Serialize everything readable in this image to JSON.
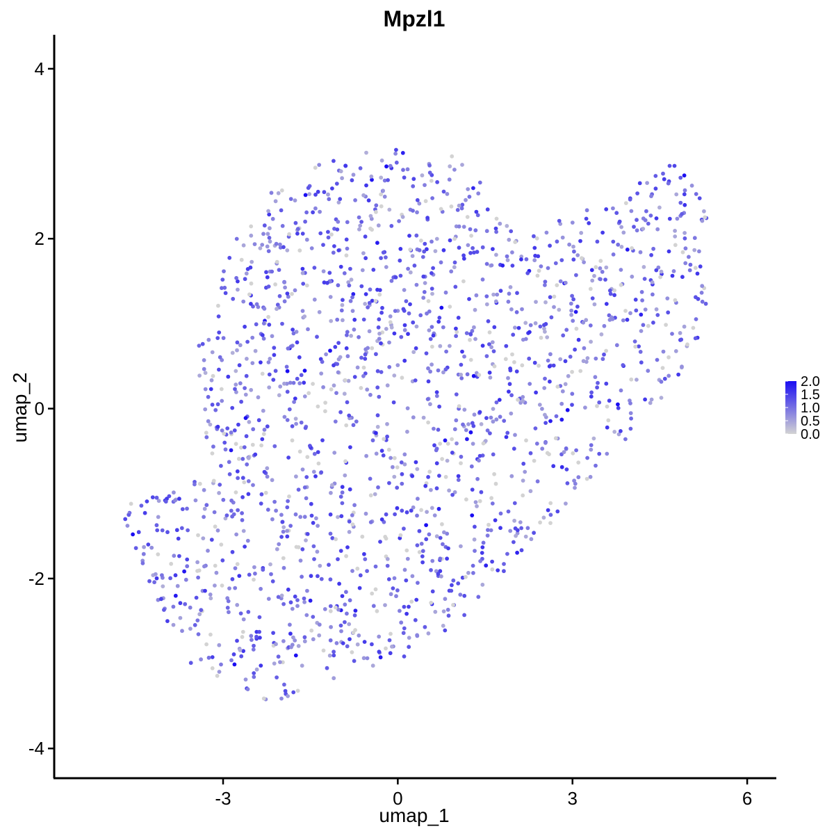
{
  "chart_data": {
    "type": "scatter",
    "title": "Mpzl1",
    "xlabel": "umap_1",
    "ylabel": "umap_2",
    "xlim": [
      -5.9,
      6.5
    ],
    "ylim": [
      -4.35,
      4.4
    ],
    "xticks": [
      -3,
      0,
      3,
      6
    ],
    "yticks": [
      -4,
      -2,
      0,
      2,
      4
    ],
    "xtick_labels": [
      "-3",
      "0",
      "3",
      "6"
    ],
    "ytick_labels": [
      "-4",
      "-2",
      "0",
      "2",
      "4"
    ],
    "grid": false,
    "legend": {
      "position": "right",
      "labels": [
        "2.0",
        "1.5",
        "1.0",
        "0.5",
        "0.0"
      ],
      "values": [
        2.0,
        1.5,
        1.0,
        0.5,
        0.0
      ],
      "range": [
        0.0,
        2.0
      ]
    },
    "colors": {
      "low": "#d3d3d3",
      "high": "#1a0df2"
    },
    "cluster_shape_vertices": [
      [
        -4.8,
        -1.2
      ],
      [
        -3.2,
        -0.7
      ],
      [
        -3.5,
        0.6
      ],
      [
        -2.8,
        2.0
      ],
      [
        -2.2,
        2.6
      ],
      [
        -1.2,
        3.0
      ],
      [
        0.3,
        3.1
      ],
      [
        1.3,
        2.9
      ],
      [
        1.6,
        2.3
      ],
      [
        2.2,
        2.0
      ],
      [
        3.0,
        2.3
      ],
      [
        4.4,
        2.8
      ],
      [
        4.7,
        3.0
      ],
      [
        5.3,
        2.4
      ],
      [
        5.3,
        1.0
      ],
      [
        4.8,
        0.2
      ],
      [
        4.4,
        -0.1
      ],
      [
        3.6,
        -0.6
      ],
      [
        2.6,
        -1.4
      ],
      [
        2.0,
        -1.8
      ],
      [
        1.0,
        -2.6
      ],
      [
        0.0,
        -3.0
      ],
      [
        -1.2,
        -3.2
      ],
      [
        -2.2,
        -3.5
      ],
      [
        -3.5,
        -3.1
      ],
      [
        -4.2,
        -2.2
      ]
    ],
    "n_points": 1850
  }
}
